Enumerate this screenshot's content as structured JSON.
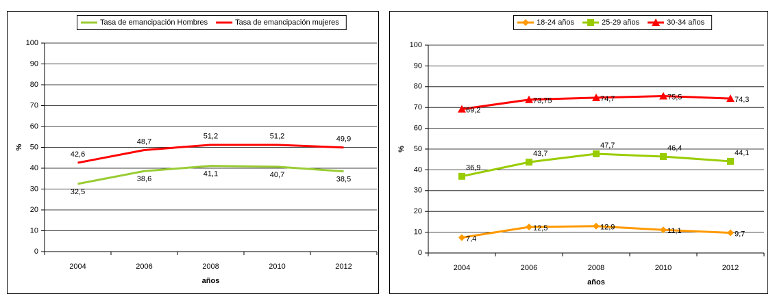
{
  "chart_data": [
    {
      "type": "line",
      "x_label": "años",
      "y_label": "%",
      "legend": "top",
      "categories": [
        "2004",
        "2006",
        "2008",
        "2010",
        "2012"
      ],
      "ylim": [
        0,
        100
      ],
      "yticks": [
        0,
        10,
        20,
        30,
        40,
        50,
        60,
        70,
        80,
        90,
        100
      ],
      "grid": true,
      "series": [
        {
          "name": "Tasa de emancipación Hombres",
          "color": "#99cc33",
          "marker": "none",
          "values": [
            32.5,
            38.6,
            41.1,
            40.7,
            38.5
          ],
          "value_labels": [
            "32,5",
            "38,6",
            "41,1",
            "40,7",
            "38,5"
          ]
        },
        {
          "name": "Tasa de emancipación mujeres",
          "color": "#ff0000",
          "marker": "none",
          "values": [
            42.6,
            48.7,
            51.2,
            51.2,
            49.9
          ],
          "value_labels": [
            "42,6",
            "48,7",
            "51,2",
            "51,2",
            "49,9"
          ]
        }
      ]
    },
    {
      "type": "line",
      "x_label": "años",
      "y_label": "%",
      "legend": "top",
      "categories": [
        "2004",
        "2006",
        "2008",
        "2010",
        "2012"
      ],
      "ylim": [
        0,
        100
      ],
      "yticks": [
        0,
        10,
        20,
        30,
        40,
        50,
        60,
        70,
        80,
        90,
        100
      ],
      "grid": true,
      "series": [
        {
          "name": "18-24 años",
          "color": "#ff9900",
          "marker": "diamond",
          "values": [
            7.4,
            12.5,
            12.9,
            11.1,
            9.7
          ],
          "value_labels": [
            "7,4",
            "12,5",
            "12,9",
            "11,1",
            "9,7"
          ]
        },
        {
          "name": "25-29 años",
          "color": "#99cc00",
          "marker": "square",
          "values": [
            36.9,
            43.7,
            47.7,
            46.4,
            44.1
          ],
          "value_labels": [
            "36,9",
            "43,7",
            "47,7",
            "46,4",
            "44,1"
          ]
        },
        {
          "name": "30-34 años",
          "color": "#ff0000",
          "marker": "triangle",
          "values": [
            69.2,
            73.75,
            74.7,
            75.5,
            74.3
          ],
          "value_labels": [
            "69,2",
            "73,75",
            "74,7",
            "75,5",
            "74,3"
          ]
        }
      ]
    }
  ]
}
